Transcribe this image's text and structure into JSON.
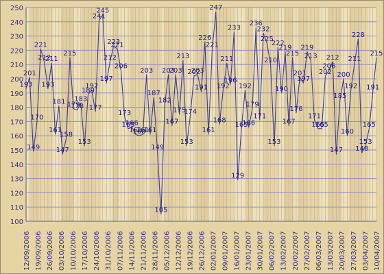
{
  "chart_data": {
    "type": "line",
    "title": "",
    "xlabel": "",
    "ylabel": "",
    "ylim": [
      100,
      250
    ],
    "y_ticks": [
      100,
      110,
      120,
      130,
      140,
      150,
      160,
      170,
      180,
      190,
      200,
      210,
      220,
      230,
      240,
      250
    ],
    "x_tick_labels": [
      "12/09/2006",
      "19/09/2006",
      "26/09/2006",
      "03/10/2006",
      "10/10/2006",
      "17/10/2006",
      "24/10/2006",
      "31/10/2006",
      "07/11/2006",
      "14/11/2006",
      "21/11/2006",
      "28/11/2006",
      "05/12/2006",
      "12/12/2006",
      "19/12/2006",
      "26/12/2006",
      "02/01/2007",
      "09/01/2007",
      "16/01/2007",
      "23/01/2007",
      "30/01/2007",
      "06/02/2007",
      "13/02/2007",
      "20/02/2007",
      "27/02/2007",
      "06/03/2007",
      "13/03/2007",
      "20/03/2007",
      "27/03/2007",
      "03/04/2007",
      "10/04/2007"
    ],
    "grid": true,
    "line_color": "#3a3a9a",
    "label_color": "#1c1c8c",
    "series": [
      {
        "values": [
          193,
          201,
          149,
          170,
          221,
          212,
          193,
          211,
          161,
          181,
          147,
          158,
          215,
          179,
          178,
          183,
          153,
          189,
          192,
          177,
          241,
          245,
          197,
          212,
          223,
          221,
          206,
          173,
          165,
          166,
          161,
          160,
          161,
          203,
          161,
          187,
          149,
          105,
          182,
          203,
          167,
          203,
          175,
          213,
          153,
          174,
          202,
          203,
          191,
          226,
          161,
          221,
          247,
          168,
          192,
          211,
          196,
          233,
          129,
          165,
          192,
          166,
          179,
          236,
          171,
          232,
          225,
          210,
          153,
          222,
          190,
          219,
          167,
          215,
          176,
          201,
          197,
          219,
          213,
          171,
          165,
          165,
          202,
          206,
          212,
          147,
          185,
          200,
          160,
          192,
          211,
          228,
          148,
          153,
          165,
          191,
          215
        ]
      }
    ]
  }
}
